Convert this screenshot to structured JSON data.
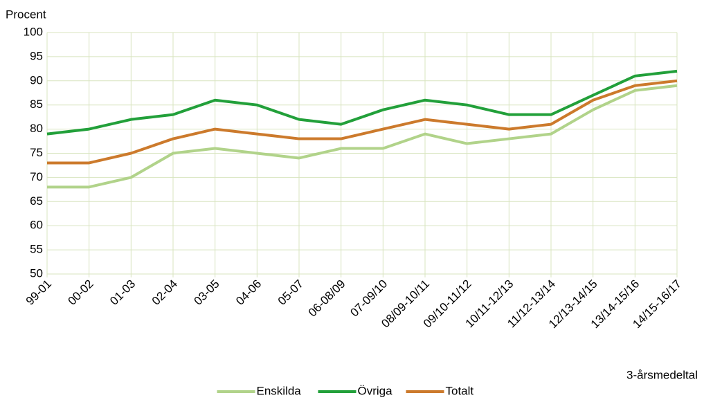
{
  "chart_data": {
    "type": "line",
    "y_label": "Procent",
    "x_label": "3-årsmedeltal",
    "categories": [
      "99-01",
      "00-02",
      "01-03",
      "02-04",
      "03-05",
      "04-06",
      "05-07",
      "06-08/09",
      "07-09/10",
      "08/09-10/11",
      "09/10-11/12",
      "10/11-12/13",
      "11/12-13/14",
      "12/13-14/15",
      "13/14-15/16",
      "14/15-16/17"
    ],
    "series": [
      {
        "name": "Enskilda",
        "color": "#b1d38a",
        "values": [
          68,
          68,
          70,
          75,
          76,
          75,
          74,
          76,
          76,
          79,
          77,
          78,
          79,
          84,
          88,
          89
        ]
      },
      {
        "name": "Övriga",
        "color": "#22a03a",
        "values": [
          79,
          80,
          82,
          83,
          86,
          85,
          82,
          81,
          84,
          86,
          85,
          83,
          83,
          87,
          91,
          92
        ]
      },
      {
        "name": "Totalt",
        "color": "#cc7a2c",
        "values": [
          73,
          73,
          75,
          78,
          80,
          79,
          78,
          78,
          80,
          82,
          81,
          80,
          81,
          86,
          89,
          90
        ]
      }
    ],
    "ylim": [
      50,
      100
    ],
    "yticks": [
      50,
      55,
      60,
      65,
      70,
      75,
      80,
      85,
      90,
      95,
      100
    ],
    "grid": true,
    "legend": "bottom"
  }
}
